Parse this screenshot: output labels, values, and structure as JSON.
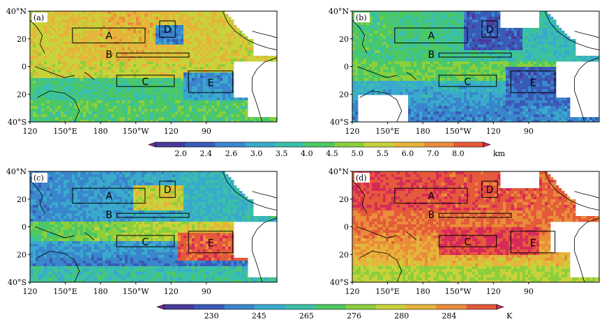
{
  "panels": [
    {
      "label": "(a)",
      "lat_ticks": [
        "40°N",
        "20",
        "0",
        "20",
        "40°S"
      ],
      "lon_ticks": [
        "120",
        "150°E",
        "180",
        "150°W",
        "120",
        "90"
      ],
      "boxes": [
        {
          "name": "A",
          "label": "A"
        },
        {
          "name": "B",
          "label": "B"
        },
        {
          "name": "C",
          "label": "C"
        },
        {
          "name": "D",
          "label": "D"
        },
        {
          "name": "E",
          "label": "E"
        }
      ],
      "palette": "height"
    },
    {
      "label": "(b)",
      "lat_ticks": [
        "40°N",
        "20",
        "0",
        "20",
        "40°S"
      ],
      "lon_ticks": [
        "120",
        "150°E",
        "180",
        "150°W",
        "120",
        "90"
      ],
      "boxes": [
        {
          "name": "A",
          "label": "A"
        },
        {
          "name": "B",
          "label": "B"
        },
        {
          "name": "C",
          "label": "C"
        },
        {
          "name": "D",
          "label": "D"
        },
        {
          "name": "E",
          "label": "E"
        }
      ],
      "palette": "height"
    },
    {
      "label": "(c)",
      "lat_ticks": [
        "40°N",
        "20",
        "0",
        "20",
        "40°S"
      ],
      "lon_ticks": [
        "120",
        "150°E",
        "180",
        "150°W",
        "120",
        "90"
      ],
      "boxes": [
        {
          "name": "A",
          "label": "A"
        },
        {
          "name": "B",
          "label": "B"
        },
        {
          "name": "C",
          "label": "C"
        },
        {
          "name": "D",
          "label": "D"
        },
        {
          "name": "E",
          "label": "E"
        }
      ],
      "palette": "temp"
    },
    {
      "label": "(d)",
      "lat_ticks": [
        "40°N",
        "20",
        "0",
        "20",
        "40°S"
      ],
      "lon_ticks": [
        "120",
        "150°E",
        "180",
        "150°W",
        "120",
        "90"
      ],
      "boxes": [
        {
          "name": "A",
          "label": "A"
        },
        {
          "name": "B",
          "label": "B"
        },
        {
          "name": "C",
          "label": "C"
        },
        {
          "name": "D",
          "label": "D"
        },
        {
          "name": "E",
          "label": "E"
        }
      ],
      "palette": "temp"
    }
  ],
  "colorbar_height": {
    "labels": [
      "2.0",
      "2.4",
      "2.6",
      "3.0",
      "3.5",
      "4.0",
      "4.5",
      "5.0",
      "5.5",
      "6.0",
      "7.0",
      "8.0"
    ],
    "unit": "km",
    "colors": [
      "#7a2a8a",
      "#4a3a9a",
      "#3a5ab8",
      "#3a86cc",
      "#3aaacc",
      "#3ac0a8",
      "#4cc864",
      "#8ccf3c",
      "#c8d23a",
      "#e6b43a",
      "#ea8c3a",
      "#e45a3a",
      "#d82a5a"
    ]
  },
  "colorbar_temp": {
    "labels": [
      "230",
      "245",
      "265",
      "276",
      "280",
      "284"
    ],
    "unit": "K",
    "colors": [
      "#7a2a8a",
      "#4a3a9a",
      "#3a5ab8",
      "#3a86cc",
      "#3aaacc",
      "#3ac0a8",
      "#4cc864",
      "#8ccf3c",
      "#c8d23a",
      "#e6b43a",
      "#ea8c3a",
      "#e45a3a",
      "#d82a5a"
    ]
  }
}
